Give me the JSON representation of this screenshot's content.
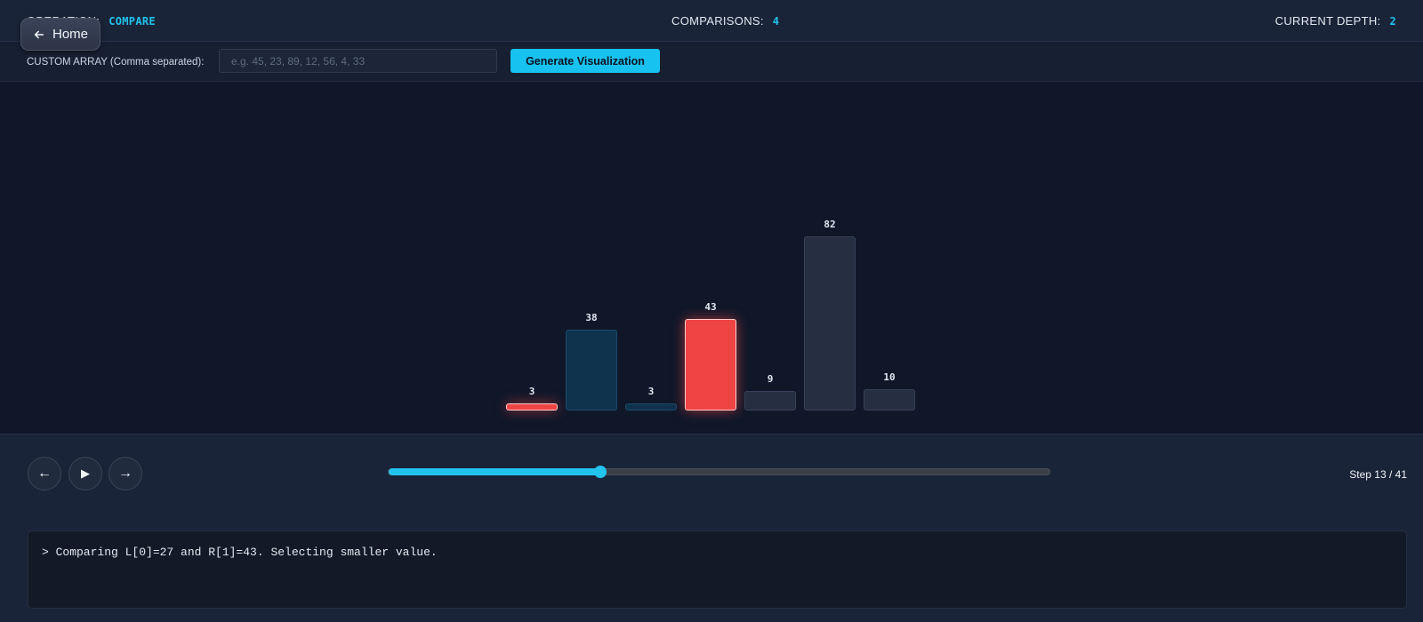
{
  "header": {
    "operation_label": "Operation:",
    "operation_value": "COMPARE",
    "comparisons_label": "Comparisons:",
    "comparisons_value": "4",
    "depth_label": "Current Depth:",
    "depth_value": "2"
  },
  "home_button": {
    "label": "Home",
    "icon": "arrow-left-icon"
  },
  "custom_array": {
    "label": "CUSTOM ARRAY (Comma separated):",
    "placeholder": "e.g. 45, 23, 89, 12, 56, 4, 33",
    "value": "",
    "button_label": "Generate Visualization"
  },
  "bars": [
    {
      "value": 3,
      "state": "compare"
    },
    {
      "value": 38,
      "state": "active-range"
    },
    {
      "value": 3,
      "state": "active-range"
    },
    {
      "value": 43,
      "state": "compare"
    },
    {
      "value": 9,
      "state": "idle"
    },
    {
      "value": 82,
      "state": "idle"
    },
    {
      "value": 10,
      "state": "idle"
    }
  ],
  "bar_colors": {
    "compare": "#ef4444",
    "active-range": "#10334d",
    "idle": "#262f41",
    "accent": "#22c3ee"
  },
  "controls": {
    "prev_icon": "arrow-left-icon",
    "play_icon": "play-icon",
    "next_icon": "arrow-right-icon",
    "progress_fraction": 0.32,
    "step_text": "Step 13 / 41"
  },
  "log": {
    "message": "> Comparing L[0]=27 and R[1]=43. Selecting smaller value."
  }
}
